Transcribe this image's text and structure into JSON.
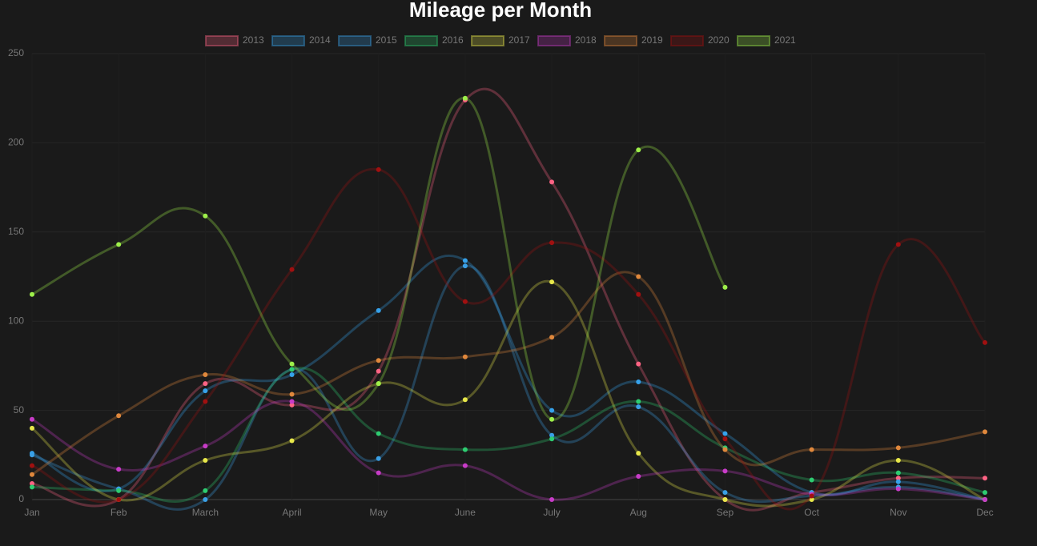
{
  "chart_data": {
    "type": "line",
    "title": "Mileage per Month",
    "categories": [
      "Jan",
      "Feb",
      "March",
      "April",
      "May",
      "June",
      "July",
      "Aug",
      "Sep",
      "Oct",
      "Nov",
      "Dec"
    ],
    "ylim": [
      0,
      250
    ],
    "yticks": [
      0,
      50,
      100,
      150,
      200,
      250
    ],
    "grid": true,
    "legend": "top",
    "series": [
      {
        "name": "2013",
        "color": "#ff6384",
        "values": [
          9,
          0,
          65,
          53,
          72,
          224,
          178,
          76,
          0,
          4,
          12,
          12
        ]
      },
      {
        "name": "2014",
        "color": "#36a2eb",
        "values": [
          26,
          6,
          61,
          70,
          106,
          134,
          50,
          66,
          37,
          4,
          10,
          0
        ]
      },
      {
        "name": "2015",
        "color": "#3aa0e6",
        "values": [
          25,
          6,
          0,
          73,
          23,
          131,
          36,
          52,
          4,
          2,
          7,
          0
        ]
      },
      {
        "name": "2016",
        "color": "#2ecc71",
        "values": [
          7,
          5,
          5,
          73,
          37,
          28,
          34,
          55,
          29,
          11,
          15,
          4
        ]
      },
      {
        "name": "2017",
        "color": "#e8e84a",
        "values": [
          40,
          0,
          22,
          33,
          65,
          56,
          122,
          26,
          0,
          0,
          22,
          0
        ]
      },
      {
        "name": "2018",
        "color": "#c83cc8",
        "values": [
          45,
          17,
          30,
          55,
          15,
          19,
          0,
          13,
          16,
          3,
          6,
          0
        ]
      },
      {
        "name": "2019",
        "color": "#e0883c",
        "values": [
          14,
          47,
          70,
          59,
          78,
          80,
          91,
          125,
          28,
          28,
          29,
          38
        ]
      },
      {
        "name": "2020",
        "color": "#a01010",
        "values": [
          19,
          0,
          55,
          129,
          185,
          111,
          144,
          115,
          34,
          2,
          143,
          88
        ]
      },
      {
        "name": "2021",
        "color": "#9ef04a",
        "values": [
          115,
          143,
          159,
          76,
          65,
          225,
          45,
          196,
          119,
          null,
          null,
          null
        ]
      }
    ]
  }
}
